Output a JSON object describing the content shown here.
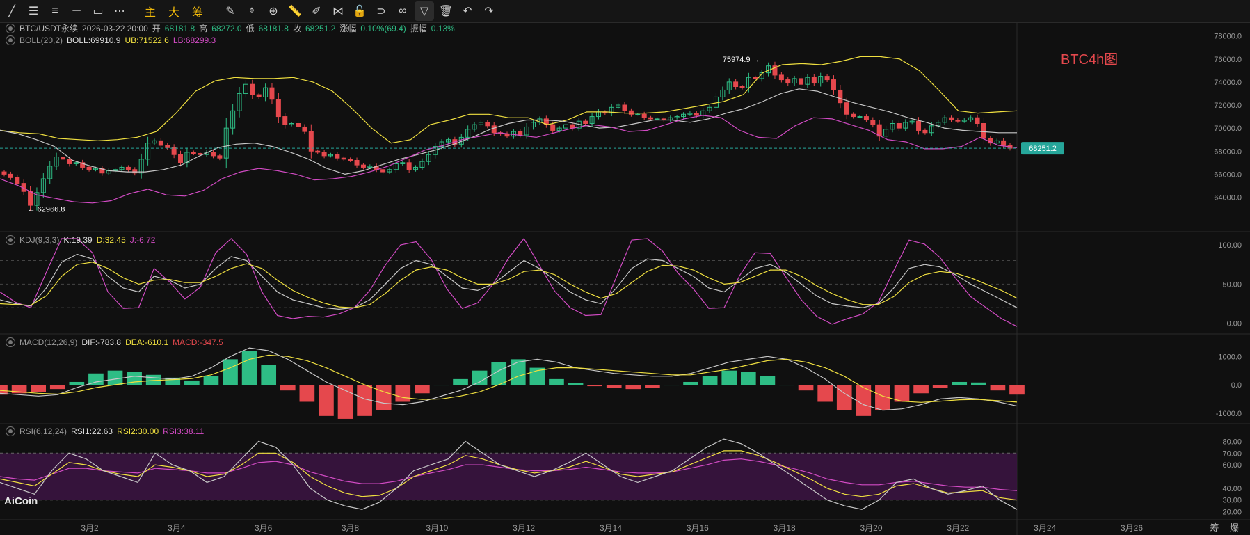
{
  "toolbar": {
    "tools": [
      "trend-line-icon",
      "horizontal-lines-icon",
      "parallel-lines-icon",
      "horizontal-ray-icon",
      "rectangle-icon",
      "more-dots-icon"
    ],
    "text_buttons": [
      "主",
      "大",
      "筹"
    ],
    "tools2": [
      "settings-pen-icon",
      "measure-icon",
      "zoom-in-icon",
      "ruler-icon",
      "brush-icon",
      "pattern-icon",
      "lock-icon",
      "magnet-icon",
      "link-icon",
      "filter-icon",
      "trash-icon",
      "undo-icon",
      "redo-icon"
    ]
  },
  "header": {
    "symbol": "BTC/USDT永续",
    "time": "2026-03-22 20:00",
    "open_label": "开",
    "open": "68181.8",
    "high_label": "高",
    "high": "68272.0",
    "low_label": "低",
    "low": "68181.8",
    "close_label": "收",
    "close": "68251.2",
    "change_label": "涨幅",
    "change": "0.10%(69.4)",
    "amp_label": "振幅",
    "amp": "0.13%"
  },
  "boll": {
    "name": "BOLL(20,2)",
    "mid": "BOLL:69910.9",
    "ub": "UB:71522.6",
    "lb": "LB:68299.3"
  },
  "kdj": {
    "name": "KDJ(9,3,3)",
    "k": "K:19.39",
    "d": "D:32.45",
    "j": "J:-6.72"
  },
  "macd": {
    "name": "MACD(12,26,9)",
    "dif": "DIF:-783.8",
    "dea": "DEA:-610.1",
    "macd": "MACD:-347.5"
  },
  "rsi": {
    "name": "RSI(6,12,24)",
    "r1": "RSI1:22.63",
    "r2": "RSI2:30.00",
    "r3": "RSI3:38.11"
  },
  "watermark": "BTC4h图",
  "logo": "AiCoin",
  "corner": "筹 爆",
  "colors": {
    "up": "#2ebd85",
    "down": "#e5484d",
    "mid": "#c8c8c8",
    "ub": "#f0e040",
    "lb": "#d24bc4",
    "rsi_band": "#3a1440",
    "price_tag": "#26a69a"
  },
  "chart_data": {
    "type": "candlestick",
    "x_labels": [
      "3月2",
      "3月4",
      "3月6",
      "3月8",
      "3月10",
      "3月12",
      "3月14",
      "3月16",
      "3月18",
      "3月20",
      "3月22",
      "3月24",
      "3月26"
    ],
    "price_axis": [
      "78000.0",
      "76000.0",
      "74000.0",
      "72000.0",
      "70000.0",
      "68000.0",
      "66000.0",
      "64000.0"
    ],
    "ylim": [
      62400,
      78400
    ],
    "last_price": "68251.2",
    "last_price_value": 68251.2,
    "high_annotation": "75974.9",
    "low_annotation": "62966.8",
    "closes": [
      66000,
      65700,
      65200,
      64500,
      63300,
      64400,
      65600,
      66700,
      67500,
      67300,
      66900,
      67000,
      66600,
      66400,
      66500,
      66100,
      66300,
      66400,
      66600,
      66400,
      66100,
      67300,
      68700,
      68900,
      68500,
      68300,
      67700,
      67000,
      67900,
      67800,
      67700,
      67900,
      67600,
      67400,
      70000,
      71500,
      73000,
      73800,
      72900,
      72700,
      73500,
      72500,
      71000,
      70300,
      70400,
      70100,
      69700,
      68000,
      67900,
      67600,
      67700,
      67400,
      67300,
      67200,
      66800,
      66600,
      66700,
      66400,
      66200,
      66400,
      66900,
      67000,
      66400,
      66600,
      67100,
      67700,
      68400,
      68800,
      69000,
      68600,
      69200,
      69900,
      70300,
      70500,
      70200,
      69600,
      69500,
      69300,
      69700,
      69400,
      70100,
      70500,
      70800,
      70300,
      69800,
      70000,
      70300,
      70000,
      70600,
      70400,
      71000,
      71400,
      71300,
      71800,
      72000,
      71500,
      71200,
      71200,
      70900,
      70800,
      70800,
      70700,
      70900,
      71000,
      71200,
      71300,
      71100,
      71500,
      71800,
      72700,
      73300,
      74000,
      73600,
      73500,
      74400,
      74300,
      74800,
      75400,
      74600,
      74200,
      73900,
      74300,
      73800,
      74400,
      73900,
      74500,
      74200,
      73300,
      72200,
      71200,
      71000,
      71000,
      70700,
      70300,
      69300,
      69900,
      70400,
      70000,
      70500,
      70600,
      69800,
      69600,
      70200,
      70500,
      70900,
      70700,
      70600,
      70700,
      70900,
      70400,
      69100,
      68700,
      68900,
      68500,
      68251.2
    ],
    "bb_mid": [
      69800,
      69500,
      69000,
      68400,
      67200,
      66700,
      66300,
      66200,
      66200,
      66400,
      66800,
      67600,
      68300,
      68600,
      68700,
      68400,
      67900,
      67300,
      66500,
      66000,
      66300,
      66800,
      67300,
      67700,
      68100,
      68600,
      69200,
      69900,
      70400,
      70700,
      70700,
      70600,
      70300,
      70000,
      70100,
      70400,
      70700,
      70700,
      70500,
      70800,
      71300,
      71700,
      72300,
      73000,
      73400,
      73200,
      72700,
      72200,
      71800,
      71400,
      70900,
      70500,
      70000,
      69800,
      69700,
      69600,
      69600
    ],
    "bb_up": [
      69800,
      69600,
      69500,
      69100,
      69000,
      68900,
      69000,
      69200,
      69700,
      71300,
      73200,
      74100,
      74400,
      74300,
      74300,
      74400,
      74000,
      73200,
      71700,
      70000,
      68700,
      69000,
      70300,
      70700,
      71200,
      71200,
      70900,
      70900,
      70300,
      70700,
      71400,
      71400,
      71300,
      71300,
      71400,
      71700,
      72000,
      72300,
      72900,
      74800,
      75500,
      75600,
      75500,
      75800,
      76200,
      76200,
      76000,
      75000,
      73300,
      71500,
      71300,
      71400,
      71500
    ],
    "bb_low": [
      65600,
      65000,
      64200,
      63900,
      63600,
      63500,
      63700,
      64300,
      64700,
      64200,
      64100,
      64600,
      65600,
      66200,
      66500,
      66300,
      66000,
      65500,
      65600,
      65800,
      66200,
      66700,
      67400,
      68100,
      68500,
      69000,
      69300,
      69600,
      69400,
      69200,
      69600,
      70000,
      70300,
      70100,
      69700,
      69800,
      70300,
      70800,
      71100,
      70900,
      69800,
      69200,
      69100,
      70200,
      70900,
      70800,
      70300,
      69800,
      69000,
      68800,
      68200,
      68200,
      68400,
      69200,
      68500,
      68300
    ],
    "kdj_k": [
      30,
      25,
      22,
      45,
      78,
      88,
      82,
      60,
      45,
      40,
      60,
      55,
      45,
      50,
      70,
      85,
      80,
      60,
      40,
      30,
      25,
      20,
      18,
      20,
      30,
      50,
      70,
      80,
      75,
      60,
      45,
      42,
      50,
      65,
      80,
      70,
      55,
      40,
      30,
      25,
      45,
      70,
      82,
      80,
      70,
      60,
      45,
      40,
      55,
      70,
      75,
      65,
      50,
      35,
      25,
      22,
      20,
      25,
      45,
      70,
      75,
      72,
      62,
      50,
      40,
      30,
      20
    ],
    "kdj_d": [
      25,
      24,
      23,
      35,
      60,
      75,
      78,
      70,
      58,
      50,
      55,
      56,
      52,
      52,
      60,
      70,
      76,
      70,
      55,
      42,
      33,
      26,
      21,
      20,
      24,
      38,
      55,
      68,
      72,
      68,
      58,
      50,
      50,
      56,
      66,
      68,
      62,
      50,
      40,
      32,
      38,
      52,
      66,
      74,
      73,
      68,
      58,
      50,
      52,
      60,
      68,
      68,
      60,
      48,
      38,
      30,
      24,
      24,
      34,
      52,
      62,
      66,
      64,
      58,
      50,
      42,
      32
    ],
    "macd_dif": [
      -300,
      -350,
      -400,
      -350,
      -100,
      100,
      200,
      300,
      250,
      200,
      300,
      600,
      1000,
      1300,
      1200,
      900,
      500,
      100,
      -200,
      -500,
      -650,
      -700,
      -600,
      -400,
      -200,
      100,
      500,
      800,
      900,
      800,
      600,
      500,
      400,
      350,
      300,
      300,
      400,
      600,
      800,
      900,
      1000,
      900,
      600,
      200,
      -300,
      -700,
      -900,
      -850,
      -700,
      -500,
      -450,
      -500,
      -600,
      -750
    ],
    "macd_dea": [
      -200,
      -250,
      -300,
      -330,
      -250,
      -100,
      0,
      100,
      150,
      180,
      220,
      350,
      600,
      900,
      1050,
      1000,
      850,
      600,
      300,
      0,
      -250,
      -450,
      -520,
      -500,
      -400,
      -250,
      0,
      300,
      500,
      600,
      600,
      550,
      500,
      450,
      400,
      350,
      350,
      450,
      550,
      700,
      850,
      900,
      800,
      600,
      300,
      -100,
      -400,
      -580,
      -620,
      -580,
      -530,
      -520,
      -560,
      -610
    ],
    "macd_hist": [
      -350,
      -300,
      -250,
      -150,
      100,
      400,
      500,
      450,
      350,
      250,
      150,
      300,
      900,
      1200,
      700,
      -200,
      -600,
      -1100,
      -1200,
      -1100,
      -900,
      -600,
      -300,
      0,
      200,
      500,
      800,
      900,
      600,
      200,
      50,
      -50,
      -100,
      -150,
      -100,
      0,
      100,
      300,
      500,
      450,
      300,
      0,
      -200,
      -600,
      -900,
      -1100,
      -900,
      -600,
      -300,
      -100,
      100,
      80,
      -200,
      -347.5
    ],
    "rsi1": [
      45,
      40,
      35,
      55,
      70,
      65,
      55,
      50,
      45,
      70,
      60,
      55,
      45,
      50,
      65,
      80,
      75,
      60,
      40,
      30,
      25,
      22,
      28,
      40,
      55,
      60,
      65,
      80,
      70,
      60,
      55,
      50,
      55,
      62,
      70,
      60,
      50,
      45,
      50,
      55,
      65,
      75,
      82,
      78,
      70,
      60,
      50,
      40,
      30,
      25,
      22,
      30,
      45,
      48,
      40,
      35,
      38,
      42,
      30,
      22
    ],
    "rsi2": [
      48,
      45,
      42,
      52,
      62,
      60,
      55,
      52,
      50,
      60,
      58,
      55,
      50,
      52,
      60,
      70,
      70,
      62,
      50,
      42,
      36,
      33,
      34,
      40,
      50,
      55,
      60,
      68,
      65,
      60,
      56,
      53,
      55,
      58,
      63,
      58,
      52,
      50,
      52,
      54,
      60,
      66,
      72,
      72,
      68,
      62,
      55,
      48,
      40,
      35,
      33,
      35,
      42,
      44,
      40,
      36,
      37,
      38,
      32,
      30
    ],
    "rsi3": [
      50,
      48,
      47,
      52,
      57,
      57,
      55,
      54,
      53,
      57,
      56,
      55,
      53,
      53,
      57,
      62,
      63,
      60,
      54,
      50,
      46,
      44,
      44,
      46,
      50,
      53,
      56,
      60,
      60,
      58,
      56,
      55,
      55,
      56,
      58,
      56,
      54,
      53,
      53,
      54,
      57,
      60,
      64,
      65,
      63,
      60,
      57,
      53,
      48,
      45,
      43,
      43,
      45,
      46,
      44,
      42,
      41,
      41,
      39,
      38
    ]
  }
}
